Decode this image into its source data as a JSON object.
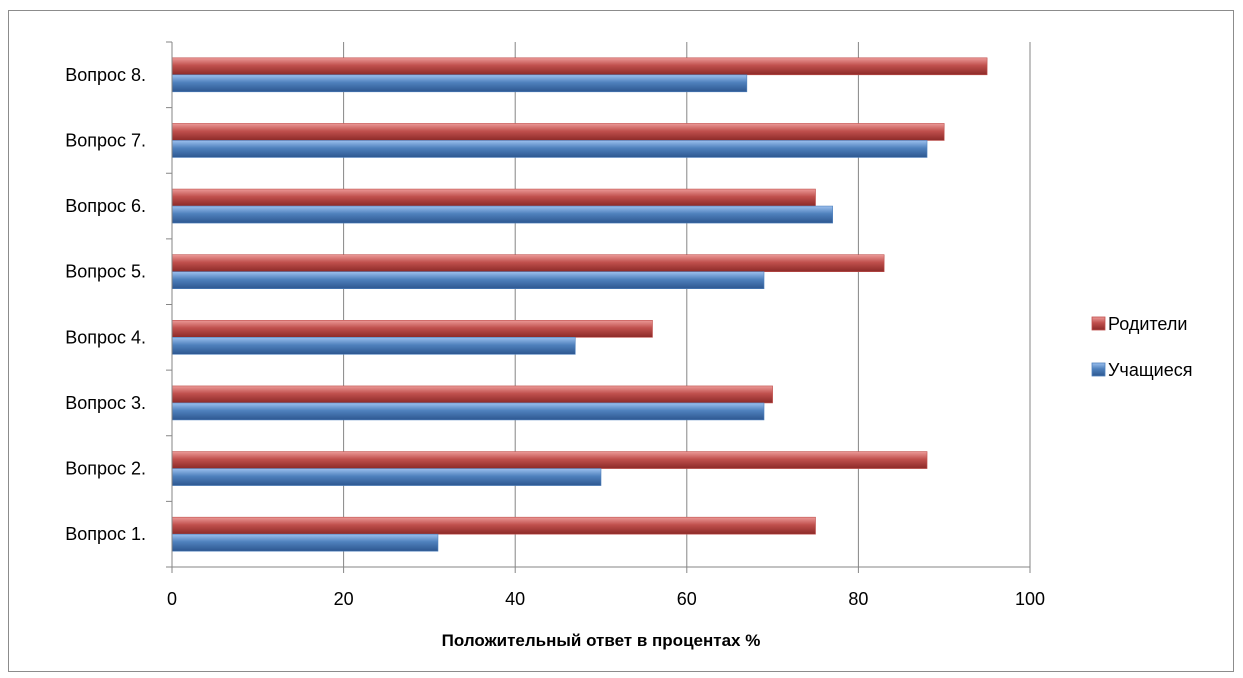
{
  "chart_data": {
    "type": "bar",
    "orientation": "horizontal",
    "title": "",
    "xlabel": "Положительный ответ в процентах %",
    "ylabel": "",
    "categories": [
      "Вопрос  1.",
      "Вопрос  2.",
      "Вопрос  3.",
      "Вопрос  4.",
      "Вопрос  5.",
      "Вопрос  6.",
      "Вопрос  7.",
      "Вопрос  8."
    ],
    "series": [
      {
        "name": "Учащиеся",
        "color": "#4f81bd",
        "values": [
          31,
          50,
          69,
          47,
          69,
          77,
          88,
          67
        ]
      },
      {
        "name": "Родители",
        "color": "#c0504d",
        "values": [
          75,
          88,
          70,
          56,
          83,
          75,
          90,
          95
        ]
      }
    ],
    "xlim": [
      0,
      100
    ],
    "xticks": [
      0,
      20,
      40,
      60,
      80,
      100
    ],
    "grid": "vertical",
    "legend_position": "right",
    "legend_order": [
      "Родители",
      "Учащиеся"
    ]
  }
}
